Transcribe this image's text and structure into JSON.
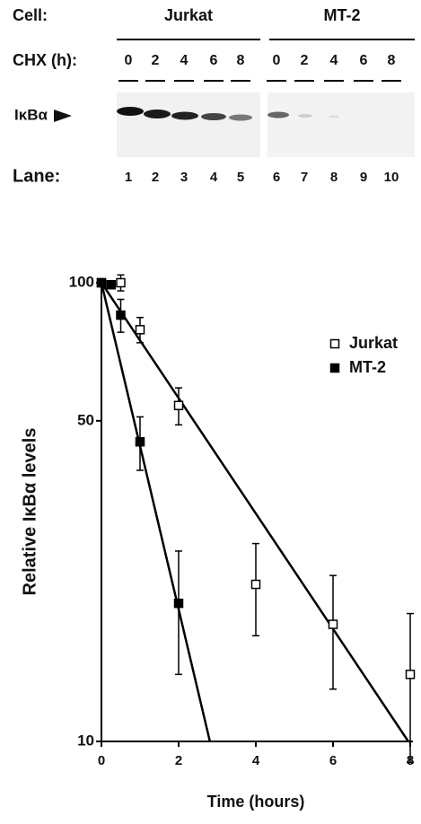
{
  "blot": {
    "cell_label": "Cell:",
    "chx_label": "CHX (h):",
    "band_label": "IκBα",
    "lane_label": "Lane:",
    "groups": [
      {
        "label": "Jurkat",
        "times": [
          0,
          2,
          4,
          6,
          8
        ]
      },
      {
        "label": "MT-2",
        "times": [
          0,
          2,
          4,
          6,
          8
        ]
      }
    ],
    "lanes": [
      1,
      2,
      3,
      4,
      5,
      6,
      7,
      8,
      9,
      10
    ]
  },
  "chart_data": {
    "type": "scatter",
    "x_label": "Time (hours)",
    "y_label": "Relative IκBα levels",
    "log_y": true,
    "xlim": [
      0,
      8.3
    ],
    "ylim": [
      10,
      100
    ],
    "xticks": [
      0,
      2,
      4,
      6,
      8
    ],
    "yticks": [
      10,
      50,
      100
    ],
    "legend": "upper right",
    "series": [
      {
        "name": "Jurkat",
        "color": "#000000",
        "fill": "#ffffff",
        "x": [
          0,
          0.5,
          1,
          2,
          4,
          6,
          8
        ],
        "values": [
          100,
          100,
          79,
          54,
          22,
          18,
          14
        ],
        "errors": [
          null,
          4,
          5,
          5,
          5,
          5,
          5
        ],
        "fit": {
          "x": [
            0,
            7.95
          ],
          "values": [
            100,
            10
          ]
        }
      },
      {
        "name": "MT-2",
        "color": "#000000",
        "fill": "#000000",
        "x": [
          0,
          0.25,
          0.5,
          1,
          2
        ],
        "values": [
          100,
          99,
          85,
          45,
          20
        ],
        "errors": [
          null,
          null,
          7,
          6,
          6
        ],
        "fit": {
          "x": [
            0,
            2.81
          ],
          "values": [
            100,
            10
          ]
        }
      }
    ]
  }
}
